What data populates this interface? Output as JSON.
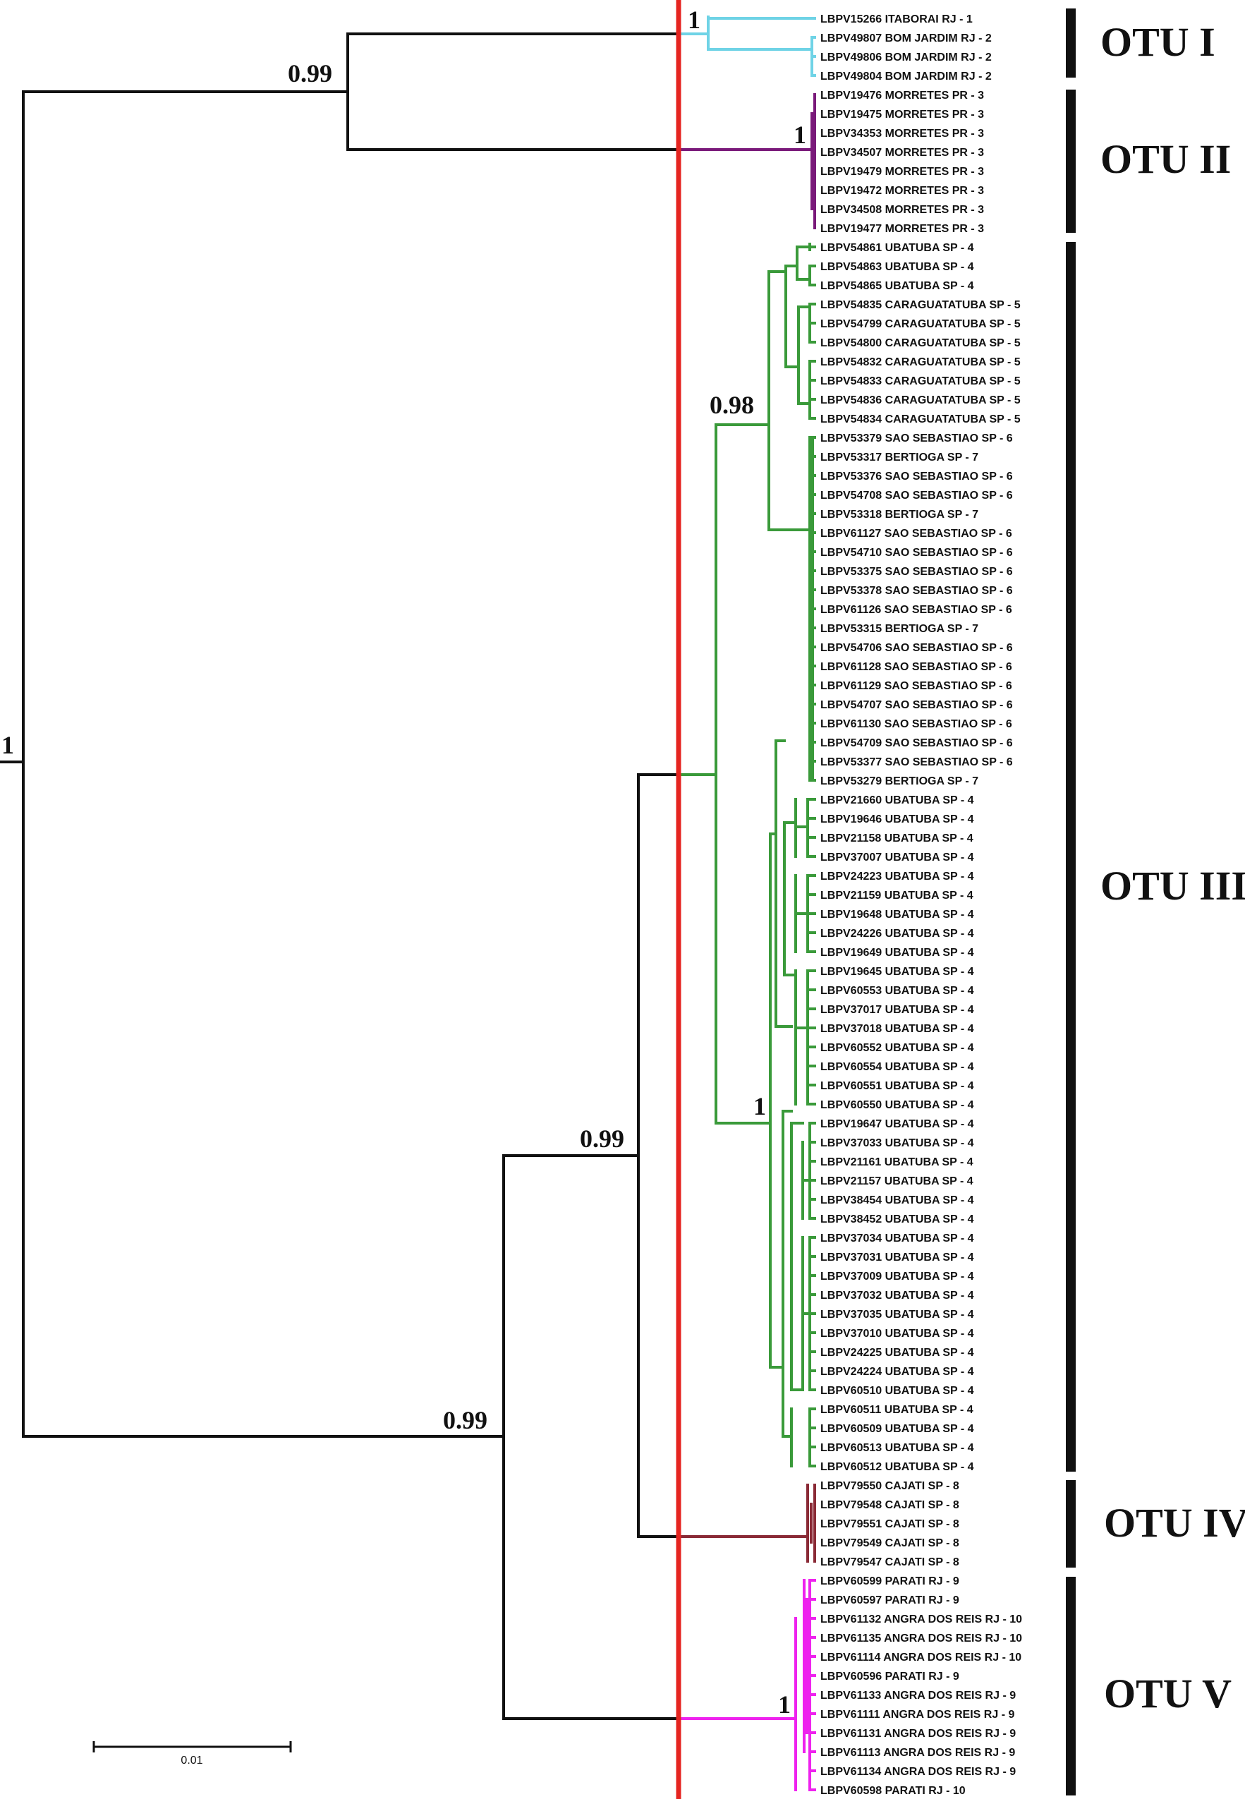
{
  "colors": {
    "black": "#111111",
    "cyan": "#6fd3e6",
    "purple": "#7a1a7a",
    "green": "#3a9a3a",
    "maroon": "#8a2a36",
    "magenta": "#ee22ee",
    "red": "#e52420"
  },
  "supports": {
    "root": "1",
    "otu12": "0.99",
    "otu1": "1",
    "otu2": "1",
    "ingroup": "0.99",
    "inner": "0.99",
    "g098": "0.98",
    "g1": "1",
    "otu5": "1"
  },
  "otus": [
    {
      "label": "OTU I"
    },
    {
      "label": "OTU II"
    },
    {
      "label": "OTU III"
    },
    {
      "label": "OTU IV"
    },
    {
      "label": "OTU V"
    }
  ],
  "scale_bar": {
    "label": "0.01"
  },
  "leaves": [
    "LBPV15266 ITABORAI RJ - 1",
    "LBPV49807 BOM JARDIM RJ - 2",
    "LBPV49806 BOM JARDIM RJ - 2",
    "LBPV49804 BOM JARDIM RJ - 2",
    "LBPV19476 MORRETES PR - 3",
    "LBPV19475 MORRETES PR - 3",
    "LBPV34353 MORRETES PR - 3",
    "LBPV34507 MORRETES PR - 3",
    "LBPV19479 MORRETES PR - 3",
    "LBPV19472 MORRETES PR - 3",
    "LBPV34508 MORRETES PR - 3",
    "LBPV19477 MORRETES PR - 3",
    "LBPV54861 UBATUBA SP - 4",
    "LBPV54863 UBATUBA SP - 4",
    "LBPV54865 UBATUBA SP - 4",
    "LBPV54835 CARAGUATATUBA SP - 5",
    "LBPV54799 CARAGUATATUBA SP - 5",
    "LBPV54800 CARAGUATATUBA SP - 5",
    "LBPV54832 CARAGUATATUBA SP - 5",
    "LBPV54833 CARAGUATATUBA SP - 5",
    "LBPV54836 CARAGUATATUBA SP - 5",
    "LBPV54834 CARAGUATATUBA SP - 5",
    "LBPV53379 SAO SEBASTIAO SP - 6",
    "LBPV53317 BERTIOGA SP - 7",
    "LBPV53376 SAO SEBASTIAO SP - 6",
    "LBPV54708 SAO SEBASTIAO SP - 6",
    "LBPV53318 BERTIOGA SP - 7",
    "LBPV61127 SAO SEBASTIAO SP - 6",
    "LBPV54710 SAO SEBASTIAO SP - 6",
    "LBPV53375 SAO SEBASTIAO SP - 6",
    "LBPV53378 SAO SEBASTIAO SP - 6",
    "LBPV61126 SAO SEBASTIAO SP - 6",
    "LBPV53315 BERTIOGA SP - 7",
    "LBPV54706 SAO SEBASTIAO SP - 6",
    "LBPV61128 SAO SEBASTIAO SP - 6",
    "LBPV61129 SAO SEBASTIAO SP - 6",
    "LBPV54707 SAO SEBASTIAO SP - 6",
    "LBPV61130 SAO SEBASTIAO SP - 6",
    "LBPV54709 SAO SEBASTIAO SP - 6",
    "LBPV53377 SAO SEBASTIAO SP - 6",
    "LBPV53279 BERTIOGA SP - 7",
    "LBPV21660 UBATUBA SP - 4",
    "LBPV19646 UBATUBA SP - 4",
    "LBPV21158 UBATUBA SP - 4",
    "LBPV37007 UBATUBA SP - 4",
    "LBPV24223 UBATUBA SP - 4",
    "LBPV21159 UBATUBA SP - 4",
    "LBPV19648 UBATUBA SP - 4",
    "LBPV24226 UBATUBA SP - 4",
    "LBPV19649 UBATUBA SP - 4",
    "LBPV19645 UBATUBA SP - 4",
    "LBPV60553 UBATUBA SP - 4",
    "LBPV37017 UBATUBA SP - 4",
    "LBPV37018 UBATUBA SP - 4",
    "LBPV60552 UBATUBA SP - 4",
    "LBPV60554 UBATUBA SP - 4",
    "LBPV60551 UBATUBA SP - 4",
    "LBPV60550 UBATUBA SP - 4",
    "LBPV19647 UBATUBA SP - 4",
    "LBPV37033 UBATUBA SP - 4",
    "LBPV21161 UBATUBA SP - 4",
    "LBPV21157 UBATUBA SP - 4",
    "LBPV38454 UBATUBA SP - 4",
    "LBPV38452 UBATUBA SP - 4",
    "LBPV37034 UBATUBA SP - 4",
    "LBPV37031 UBATUBA SP - 4",
    "LBPV37009 UBATUBA SP - 4",
    "LBPV37032 UBATUBA SP - 4",
    "LBPV37035 UBATUBA SP - 4",
    "LBPV37010 UBATUBA SP - 4",
    "LBPV24225 UBATUBA SP - 4",
    "LBPV24224 UBATUBA SP - 4",
    "LBPV60510 UBATUBA SP - 4",
    "LBPV60511 UBATUBA SP - 4",
    "LBPV60509 UBATUBA SP - 4",
    "LBPV60513 UBATUBA SP - 4",
    "LBPV60512 UBATUBA SP - 4",
    "LBPV79550 CAJATI SP - 8",
    "LBPV79548 CAJATI SP - 8",
    "LBPV79551 CAJATI SP - 8",
    "LBPV79549 CAJATI SP - 8",
    "LBPV79547 CAJATI SP - 8",
    "LBPV60599 PARATI RJ - 9",
    "LBPV60597 PARATI RJ - 9",
    "LBPV61132 ANGRA DOS REIS RJ - 10",
    "LBPV61135 ANGRA DOS REIS RJ - 10",
    "LBPV61114 ANGRA DOS REIS RJ - 10",
    "LBPV60596 PARATI RJ - 9",
    "LBPV61133 ANGRA DOS REIS RJ - 9",
    "LBPV61111 ANGRA DOS REIS RJ - 9",
    "LBPV61131 ANGRA DOS REIS RJ - 9",
    "LBPV61113 ANGRA DOS REIS RJ - 9",
    "LBPV61134 ANGRA DOS REIS RJ - 9",
    "LBPV60598 PARATI RJ - 10"
  ]
}
